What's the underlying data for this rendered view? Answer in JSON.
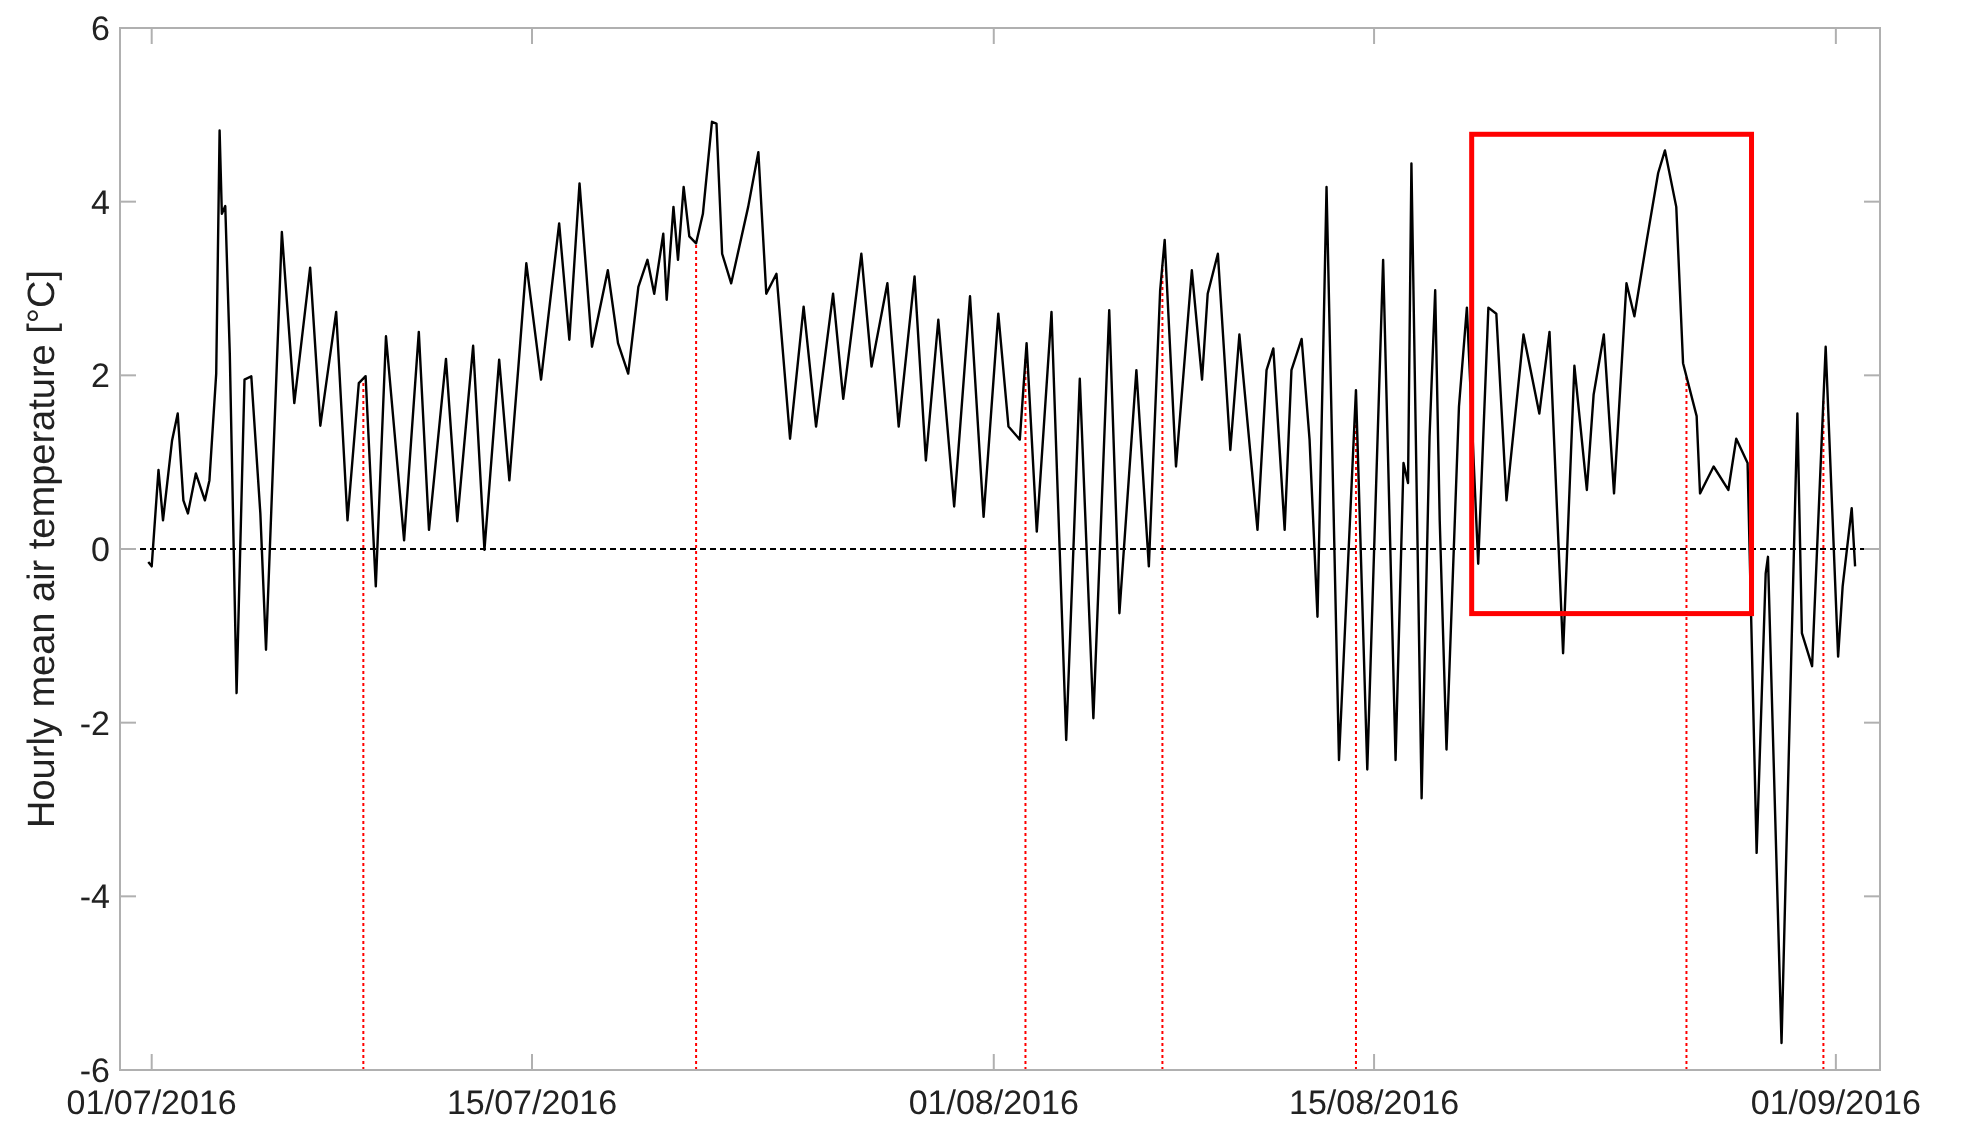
{
  "chart_data": {
    "type": "line",
    "ylabel": "Hourly mean air temperature [°C]",
    "xlim": [
      "2016-06-29T20:00",
      "2016-09-02T15:00"
    ],
    "xticks": [
      {
        "value": "2016-07-01",
        "label": "01/07/2016"
      },
      {
        "value": "2016-07-15",
        "label": "15/07/2016"
      },
      {
        "value": "2016-08-01",
        "label": "01/08/2016"
      },
      {
        "value": "2016-08-15",
        "label": "15/08/2016"
      },
      {
        "value": "2016-09-01",
        "label": "01/09/2016"
      }
    ],
    "ylim": [
      -6,
      6
    ],
    "yticks": [
      -6,
      -4,
      -2,
      0,
      2,
      4,
      6
    ],
    "grid": false,
    "marker": "none",
    "line_style": "solid",
    "ref_lines": [
      {
        "axis": "y",
        "value": 0,
        "color": "#000000",
        "line_style": "dashed"
      },
      {
        "axis": "x",
        "value": "2016-07-08T19:00",
        "color": "#ff0000",
        "line_style": "dotted"
      },
      {
        "axis": "x",
        "value": "2016-07-21T01:00",
        "color": "#ff0000",
        "line_style": "dotted"
      },
      {
        "axis": "x",
        "value": "2016-08-02T04:00",
        "color": "#ff0000",
        "line_style": "dotted"
      },
      {
        "axis": "x",
        "value": "2016-08-07T05:00",
        "color": "#ff0000",
        "line_style": "dotted"
      },
      {
        "axis": "x",
        "value": "2016-08-14T08:00",
        "color": "#ff0000",
        "line_style": "dotted"
      },
      {
        "axis": "x",
        "value": "2016-08-26T12:00",
        "color": "#ff0000",
        "line_style": "dotted"
      },
      {
        "axis": "x",
        "value": "2016-08-31T13:00",
        "color": "#ff0000",
        "line_style": "dotted"
      }
    ],
    "series": [
      {
        "color": "#000000",
        "x": [
          "2016-06-30T21:00",
          "2016-07-01T00:00",
          "2016-07-01T06:00",
          "2016-07-01T10:00",
          "2016-07-01T18:00",
          "2016-07-01T23:00",
          "2016-07-02T04:00",
          "2016-07-02T08:00",
          "2016-07-02T15:00",
          "2016-07-02T23:00",
          "2016-07-03T03:00",
          "2016-07-03T09:00",
          "2016-07-03T12:00",
          "2016-07-03T14:00",
          "2016-07-03T17:00",
          "2016-07-03T21:00",
          "2016-07-04T03:00",
          "2016-07-04T10:00",
          "2016-07-04T16:00",
          "2016-07-05T00:00",
          "2016-07-05T05:00",
          "2016-07-05T19:00",
          "2016-07-06T06:00",
          "2016-07-06T20:00",
          "2016-07-07T05:00",
          "2016-07-07T19:00",
          "2016-07-08T05:00",
          "2016-07-08T15:00",
          "2016-07-08T21:00",
          "2016-07-09T06:00",
          "2016-07-09T15:00",
          "2016-07-10T07:00",
          "2016-07-10T20:00",
          "2016-07-11T05:00",
          "2016-07-11T20:00",
          "2016-07-12T06:00",
          "2016-07-12T20:00",
          "2016-07-13T06:00",
          "2016-07-13T19:00",
          "2016-07-14T04:00",
          "2016-07-14T12:00",
          "2016-07-14T19:00",
          "2016-07-15T08:00",
          "2016-07-16T00:00",
          "2016-07-16T09:00",
          "2016-07-16T18:00",
          "2016-07-17T05:00",
          "2016-07-17T19:00",
          "2016-07-18T04:00",
          "2016-07-18T13:00",
          "2016-07-18T22:00",
          "2016-07-19T06:00",
          "2016-07-19T12:00",
          "2016-07-19T20:00",
          "2016-07-19T23:00",
          "2016-07-20T05:00",
          "2016-07-20T09:00",
          "2016-07-20T14:00",
          "2016-07-20T19:00",
          "2016-07-21T01:00",
          "2016-07-21T07:00",
          "2016-07-21T15:00",
          "2016-07-21T19:00",
          "2016-07-22T00:00",
          "2016-07-22T08:00",
          "2016-07-22T23:00",
          "2016-07-23T08:00",
          "2016-07-23T15:00",
          "2016-07-24T00:00",
          "2016-07-24T12:00",
          "2016-07-25T00:00",
          "2016-07-25T11:00",
          "2016-07-26T02:00",
          "2016-07-26T11:00",
          "2016-07-27T03:00",
          "2016-07-27T12:00",
          "2016-07-28T02:00",
          "2016-07-28T12:00",
          "2016-07-29T02:00",
          "2016-07-29T12:00",
          "2016-07-29T23:00",
          "2016-07-30T13:00",
          "2016-07-31T03:00",
          "2016-07-31T15:00",
          "2016-08-01T04:00",
          "2016-08-01T13:00",
          "2016-08-01T23:00",
          "2016-08-02T05:00",
          "2016-08-02T14:00",
          "2016-08-03T03:00",
          "2016-08-03T16:00",
          "2016-08-04T04:00",
          "2016-08-04T16:00",
          "2016-08-05T06:00",
          "2016-08-05T15:00",
          "2016-08-06T06:00",
          "2016-08-06T17:00",
          "2016-08-07T03:00",
          "2016-08-07T07:00",
          "2016-08-07T17:00",
          "2016-08-08T07:00",
          "2016-08-08T16:00",
          "2016-08-08T21:00",
          "2016-08-09T06:00",
          "2016-08-09T17:00",
          "2016-08-10T01:00",
          "2016-08-10T17:00",
          "2016-08-11T01:00",
          "2016-08-11T07:00",
          "2016-08-11T17:00",
          "2016-08-11T23:00",
          "2016-08-12T08:00",
          "2016-08-12T15:00",
          "2016-08-12T22:00",
          "2016-08-13T03:00",
          "2016-08-13T06:00",
          "2016-08-13T17:00",
          "2016-08-14T08:00",
          "2016-08-14T18:00",
          "2016-08-15T08:00",
          "2016-08-15T19:00",
          "2016-08-16T02:00",
          "2016-08-16T06:00",
          "2016-08-16T09:00",
          "2016-08-16T18:00",
          "2016-08-17T01:00",
          "2016-08-17T06:00",
          "2016-08-17T10:00",
          "2016-08-17T16:00",
          "2016-08-18T03:00",
          "2016-08-18T10:00",
          "2016-08-18T20:00",
          "2016-08-19T05:00",
          "2016-08-19T12:00",
          "2016-08-19T21:00",
          "2016-08-20T12:00",
          "2016-08-21T02:00",
          "2016-08-21T11:00",
          "2016-08-21T23:00",
          "2016-08-22T09:00",
          "2016-08-22T20:00",
          "2016-08-23T02:00",
          "2016-08-23T11:00",
          "2016-08-23T20:00",
          "2016-08-24T07:00",
          "2016-08-24T14:00",
          "2016-08-25T01:00",
          "2016-08-25T11:00",
          "2016-08-25T17:00",
          "2016-08-26T03:00",
          "2016-08-26T09:00",
          "2016-08-26T21:00",
          "2016-08-27T00:00",
          "2016-08-27T12:00",
          "2016-08-28T01:00",
          "2016-08-28T08:00",
          "2016-08-28T18:00",
          "2016-08-29T02:00",
          "2016-08-29T10:00",
          "2016-08-29T12:00",
          "2016-08-30T00:00",
          "2016-08-30T14:00",
          "2016-08-30T18:00",
          "2016-08-31T03:00",
          "2016-08-31T15:00",
          "2016-09-01T02:00",
          "2016-09-01T06:00",
          "2016-09-01T14:00",
          "2016-09-01T17:00"
        ],
        "values": [
          -0.15,
          -0.2,
          0.91,
          0.33,
          1.25,
          1.56,
          0.56,
          0.41,
          0.87,
          0.56,
          0.79,
          2.02,
          4.82,
          3.86,
          3.95,
          2.25,
          -1.66,
          1.95,
          1.99,
          0.41,
          -1.16,
          3.65,
          1.68,
          3.24,
          1.42,
          2.73,
          0.33,
          1.91,
          1.99,
          -0.43,
          2.45,
          0.1,
          2.5,
          0.22,
          2.19,
          0.32,
          2.34,
          -0.01,
          2.18,
          0.79,
          2.1,
          3.29,
          1.95,
          3.75,
          2.41,
          4.21,
          2.33,
          3.21,
          2.37,
          2.02,
          3.02,
          3.33,
          2.94,
          3.63,
          2.87,
          3.94,
          3.33,
          4.17,
          3.6,
          3.52,
          3.86,
          4.92,
          4.9,
          3.4,
          3.06,
          3.94,
          4.57,
          2.94,
          3.17,
          1.27,
          2.79,
          1.41,
          2.94,
          1.73,
          3.4,
          2.1,
          3.06,
          1.41,
          3.14,
          1.02,
          2.64,
          0.49,
          2.91,
          0.37,
          2.71,
          1.41,
          1.26,
          2.37,
          0.2,
          2.73,
          -2.2,
          1.96,
          -1.95,
          2.75,
          -0.74,
          2.06,
          -0.2,
          2.98,
          3.56,
          0.95,
          3.21,
          1.95,
          2.94,
          3.4,
          1.14,
          2.47,
          0.22,
          2.06,
          2.31,
          0.22,
          2.06,
          2.42,
          1.26,
          -0.78,
          2.25,
          4.17,
          -2.43,
          1.83,
          -2.54,
          3.33,
          -2.43,
          0.99,
          0.76,
          4.44,
          -2.87,
          1.29,
          2.98,
          0.33,
          -2.31,
          1.64,
          2.78,
          -0.17,
          2.78,
          2.71,
          0.56,
          2.47,
          1.56,
          2.5,
          -1.2,
          2.11,
          0.68,
          1.78,
          2.47,
          0.64,
          3.06,
          2.68,
          3.56,
          4.33,
          4.59,
          3.94,
          2.14,
          1.53,
          0.64,
          0.95,
          0.68,
          1.27,
          0.99,
          -3.5,
          -0.28,
          -0.09,
          -5.69,
          1.56,
          -0.97,
          -1.35,
          2.33,
          -1.24,
          -0.43,
          0.47,
          -0.2
        ]
      }
    ]
  }
}
